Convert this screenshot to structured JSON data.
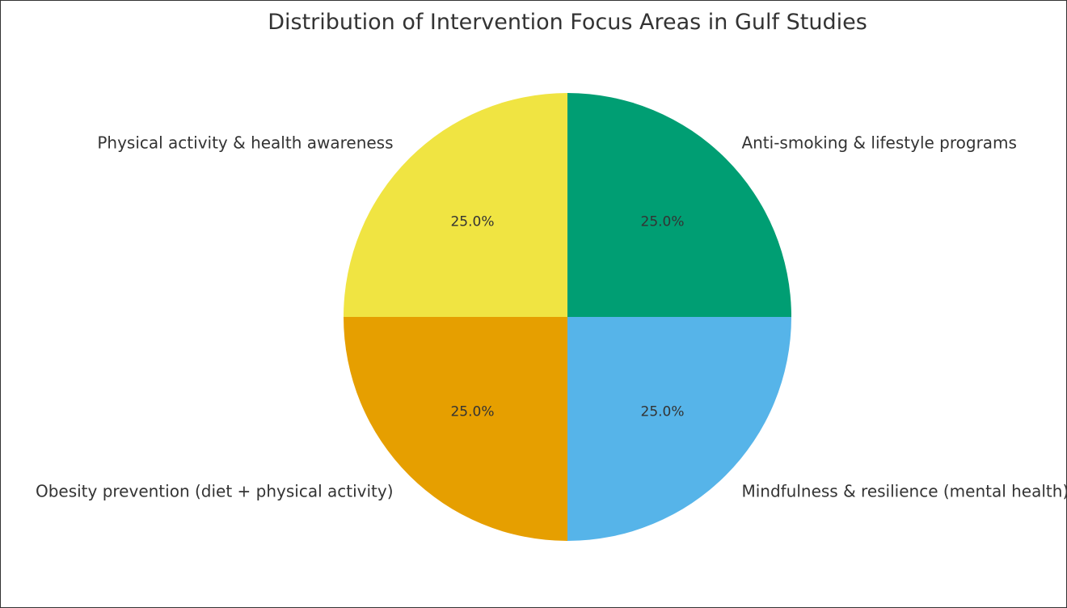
{
  "chart_data": {
    "type": "pie",
    "title": "Distribution of Intervention Focus Areas in Gulf Studies",
    "start_angle_deg": 90,
    "direction": "counterclockwise",
    "slices": [
      {
        "label": "Physical activity & health awareness",
        "value": 25.0,
        "pct_label": "25.0%",
        "color": "#F0E442"
      },
      {
        "label": "Obesity prevention (diet + physical activity)",
        "value": 25.0,
        "pct_label": "25.0%",
        "color": "#E69F00"
      },
      {
        "label": "Mindfulness & resilience (mental health)",
        "value": 25.0,
        "pct_label": "25.0%",
        "color": "#56B4E9"
      },
      {
        "label": "Anti-smoking & lifestyle programs",
        "value": 25.0,
        "pct_label": "25.0%",
        "color": "#009E73"
      }
    ]
  }
}
